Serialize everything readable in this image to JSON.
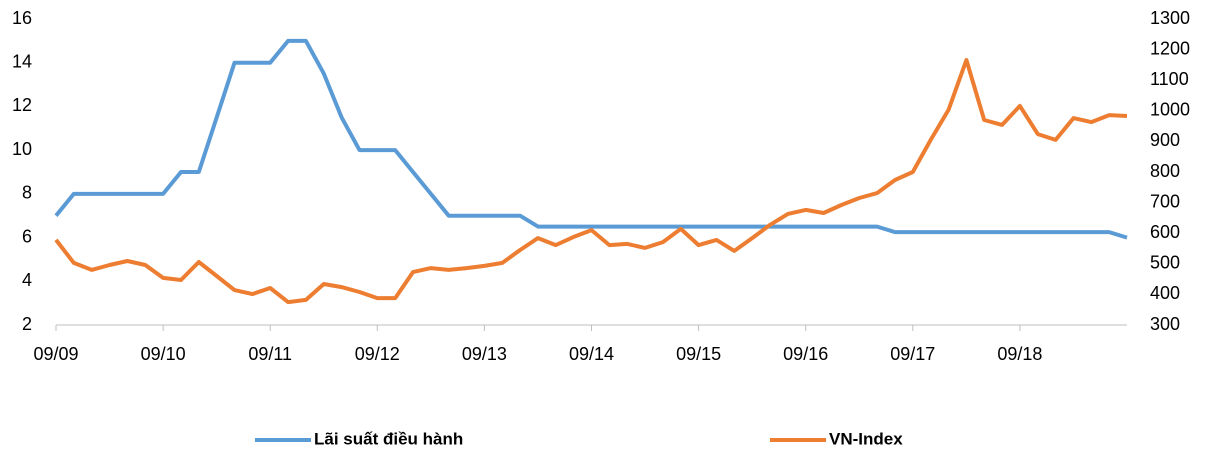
{
  "chart_data": {
    "type": "line",
    "categories": [
      "09/09",
      null,
      null,
      null,
      null,
      null,
      "09/10",
      null,
      null,
      null,
      null,
      null,
      "09/11",
      null,
      null,
      null,
      null,
      null,
      "09/12",
      null,
      null,
      null,
      null,
      null,
      "09/13",
      null,
      null,
      null,
      null,
      null,
      "09/14",
      null,
      null,
      null,
      null,
      null,
      "09/15",
      null,
      null,
      null,
      null,
      null,
      "09/16",
      null,
      null,
      null,
      null,
      null,
      "09/17",
      null,
      null,
      null,
      null,
      null,
      "09/18",
      null,
      null,
      null,
      null,
      null,
      null
    ],
    "series": [
      {
        "name": "Lãi suất điều hành",
        "color": "#5b9bd5",
        "axis": "y",
        "values": [
          7,
          8,
          8,
          8,
          8,
          8,
          8,
          9,
          9,
          11.5,
          14,
          14,
          14,
          15,
          15,
          13.5,
          11.5,
          10,
          10,
          10,
          9,
          8,
          7,
          7,
          7,
          7,
          7,
          6.5,
          6.5,
          6.5,
          6.5,
          6.5,
          6.5,
          6.5,
          6.5,
          6.5,
          6.5,
          6.5,
          6.5,
          6.5,
          6.5,
          6.5,
          6.5,
          6.5,
          6.5,
          6.5,
          6.5,
          6.25,
          6.25,
          6.25,
          6.25,
          6.25,
          6.25,
          6.25,
          6.25,
          6.25,
          6.25,
          6.25,
          6.25,
          6.25,
          6
        ]
      },
      {
        "name": "VN-Index",
        "color": "#ed7d31",
        "axis": "y2",
        "values": [
          578,
          503,
          480,
          496,
          509,
          496,
          454,
          447,
          506,
          460,
          414,
          401,
          421,
          375,
          382,
          434,
          424,
          408,
          388,
          388,
          473,
          486,
          480,
          486,
          493,
          503,
          545,
          584,
          561,
          588,
          610,
          561,
          565,
          552,
          571,
          614,
          561,
          578,
          542,
          584,
          627,
          663,
          676,
          666,
          692,
          715,
          731,
          774,
          800,
          905,
          1003,
          1166,
          970,
          954,
          1016,
          924,
          905,
          976,
          963,
          986,
          983
        ]
      }
    ],
    "ylim": [
      2,
      16
    ],
    "yticks": [
      2,
      4,
      6,
      8,
      10,
      12,
      14,
      16
    ],
    "y2lim": [
      300,
      1300
    ],
    "y2ticks": [
      300,
      400,
      500,
      600,
      700,
      800,
      900,
      1000,
      1100,
      1200,
      1300
    ],
    "grid": false,
    "legend": "bottom"
  }
}
